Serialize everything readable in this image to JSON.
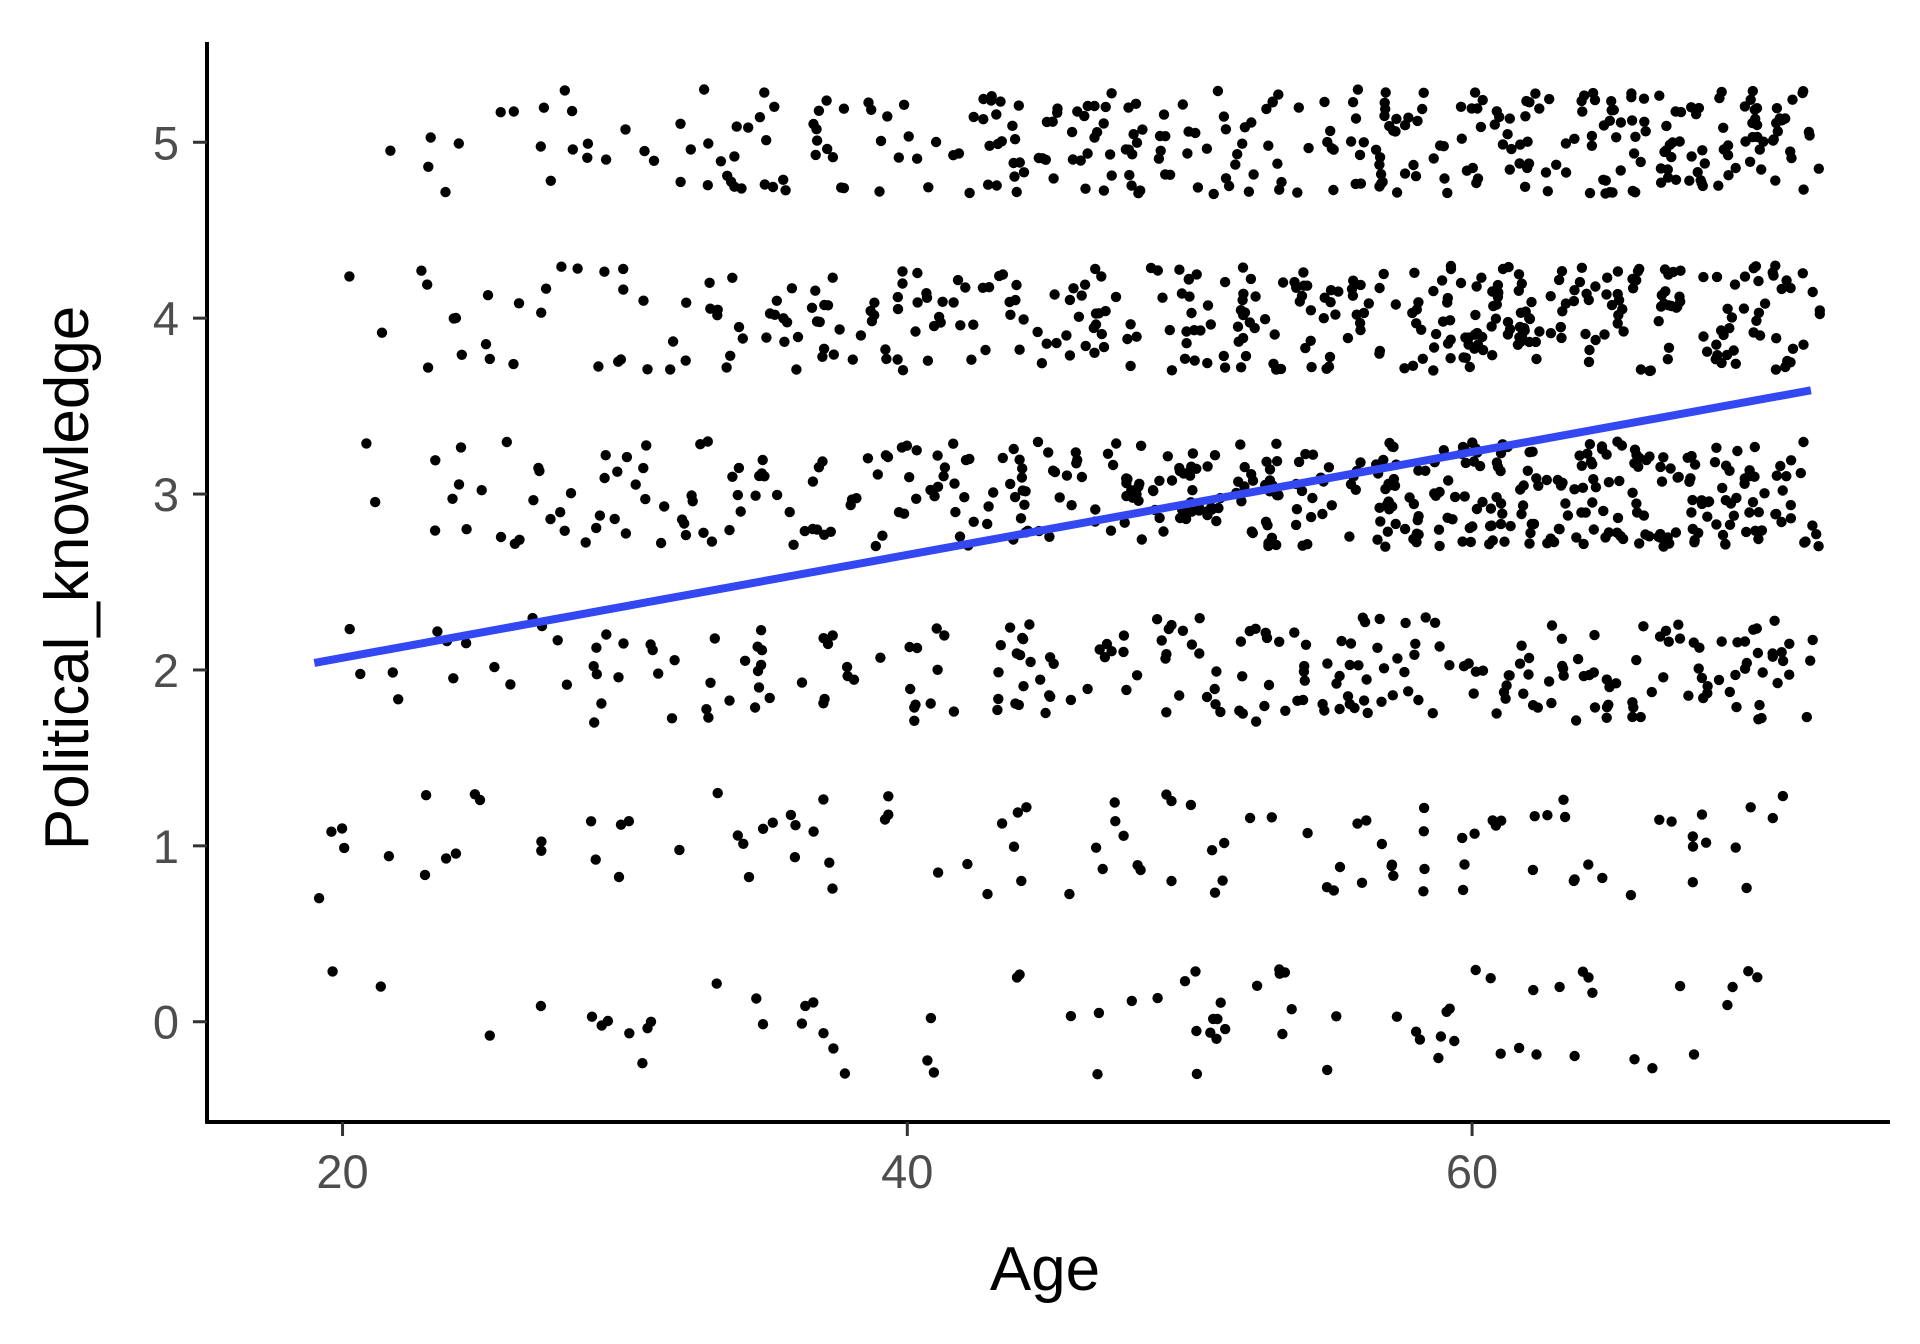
{
  "chart_data": {
    "type": "scatter",
    "xlabel": "Age",
    "ylabel": "Political_knowledge",
    "xlim": [
      15.2,
      74.8
    ],
    "ylim": [
      -0.57,
      5.57
    ],
    "x_ticks": [
      "20",
      "40",
      "60"
    ],
    "x_tick_values": [
      20,
      40,
      60
    ],
    "y_ticks": [
      "0",
      "1",
      "2",
      "3",
      "4",
      "5"
    ],
    "y_tick_values": [
      0,
      1,
      2,
      3,
      4,
      5
    ],
    "grid": false,
    "legend": "none",
    "point_color": "#000000",
    "trend_color": "#3348f2",
    "trend_line": {
      "x": [
        19,
        72
      ],
      "y": [
        2.04,
        3.59
      ]
    },
    "scatter_generation": {
      "note": "jittered scatter of integer scores; reproduced from per-level count estimates",
      "x_range": [
        19,
        72
      ],
      "jitter_x": 0.4,
      "jitter_y": 0.3,
      "seed": 7,
      "levels": [
        {
          "y": 0,
          "count": 75,
          "age_skew": 0.15
        },
        {
          "y": 1,
          "count": 105,
          "age_skew": 0.1
        },
        {
          "y": 2,
          "count": 250,
          "age_skew": 0.55
        },
        {
          "y": 3,
          "count": 450,
          "age_skew": 0.9
        },
        {
          "y": 4,
          "count": 380,
          "age_skew": 0.9
        },
        {
          "y": 5,
          "count": 340,
          "age_skew": 1.0
        }
      ]
    }
  }
}
